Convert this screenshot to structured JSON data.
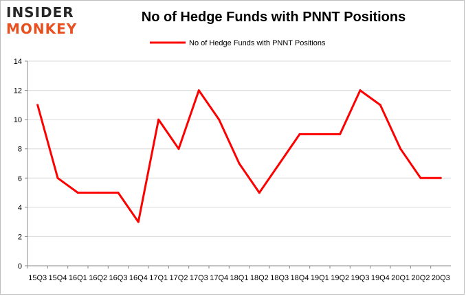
{
  "logo": {
    "line1": "INSIDER",
    "line2": "MONKEY"
  },
  "colors": {
    "line": "#ff0000",
    "grid": "#d9d9d9",
    "axis": "#888888"
  },
  "chart_data": {
    "type": "line",
    "title": "No of Hedge Funds with PNNT Positions",
    "xlabel": "",
    "ylabel": "",
    "ylim": [
      0,
      14
    ],
    "yticks": [
      0,
      2,
      4,
      6,
      8,
      10,
      12,
      14
    ],
    "grid": true,
    "legend": "top-center",
    "categories": [
      "15Q3",
      "15Q4",
      "16Q1",
      "16Q2",
      "16Q3",
      "16Q4",
      "17Q1",
      "17Q2",
      "17Q3",
      "17Q4",
      "18Q1",
      "18Q2",
      "18Q3",
      "18Q4",
      "19Q1",
      "19Q2",
      "19Q3",
      "19Q4",
      "20Q1",
      "20Q2",
      "20Q3"
    ],
    "series": [
      {
        "name": "No of Hedge Funds with PNNT Positions",
        "values": [
          11,
          6,
          5,
          5,
          5,
          3,
          10,
          8,
          12,
          10,
          7,
          5,
          7,
          9,
          9,
          9,
          12,
          11,
          8,
          6,
          6
        ]
      }
    ]
  }
}
